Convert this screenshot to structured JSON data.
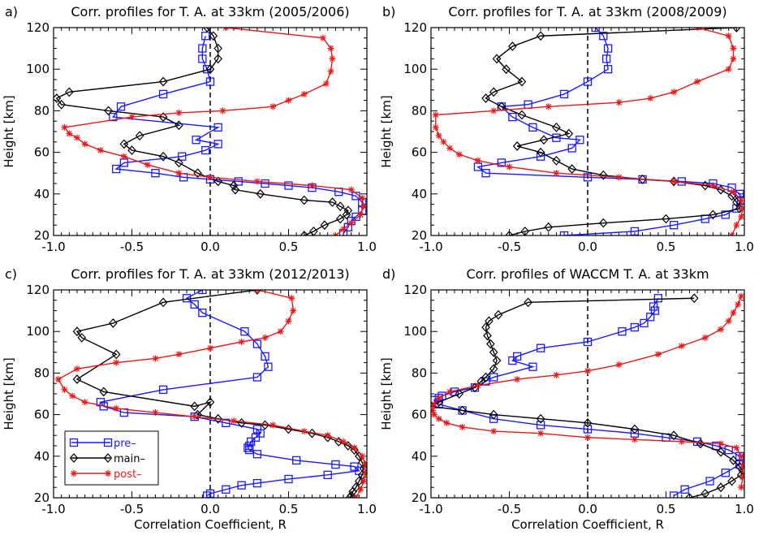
{
  "chart_data": [
    {
      "type": "line",
      "panel_label": "a)",
      "title": "Corr. profiles for T. A. at 33km (2005/2006)",
      "xlabel": "",
      "ylabel": "Height [km]",
      "xlim": [
        -1.0,
        1.0
      ],
      "ylim": [
        20,
        120
      ],
      "xticks": [
        "-1.0",
        "-0.5",
        "0.0",
        "0.5",
        "1.0"
      ],
      "yticks": [
        "20",
        "40",
        "60",
        "80",
        "100",
        "120"
      ],
      "zero_line": "dashed",
      "series": [
        {
          "key": "pre",
          "color": "#1a1aff",
          "marker": "square",
          "x": [
            -0.03,
            -0.05,
            -0.05,
            -0.02,
            0.0,
            -0.3,
            -0.57,
            -0.62,
            0.05,
            -0.09,
            0.05,
            -0.03,
            -0.18,
            -0.55,
            -0.6,
            -0.35,
            -0.17,
            0.0,
            0.18,
            0.35,
            0.5,
            0.65,
            0.82,
            0.93,
            0.97,
            0.97,
            0.93,
            0.9,
            0.88,
            0.85
          ],
          "y": [
            116,
            110,
            105,
            100,
            94,
            88,
            82,
            77,
            72,
            66,
            64,
            61,
            58,
            55,
            52,
            50,
            48,
            47,
            46,
            45,
            44,
            43,
            41,
            39,
            36,
            32,
            29,
            27,
            24,
            21
          ]
        },
        {
          "key": "main",
          "color": "#000000",
          "marker": "diamond",
          "x": [
            -0.02,
            0.02,
            0.05,
            0.05,
            0.0,
            -0.3,
            -0.9,
            -0.98,
            -0.95,
            -0.65,
            -0.3,
            -0.2,
            -0.45,
            -0.55,
            -0.5,
            -0.3,
            -0.2,
            -0.08,
            0.05,
            0.15,
            0.16,
            0.32,
            0.6,
            0.78,
            0.83,
            0.88,
            0.87,
            0.83,
            0.73,
            0.66,
            0.6
          ],
          "y": [
            120,
            116,
            110,
            105,
            100,
            94,
            89,
            86,
            83,
            80,
            77,
            73,
            68,
            64,
            61,
            58,
            55,
            50,
            46,
            44,
            42,
            40,
            37,
            36,
            34,
            32,
            30,
            28,
            25,
            22,
            20
          ]
        },
        {
          "key": "post",
          "color": "#e8191a",
          "marker": "star",
          "x": [
            0.1,
            0.72,
            0.77,
            0.78,
            0.77,
            0.74,
            0.6,
            0.5,
            0.4,
            0.08,
            -0.2,
            -0.5,
            -0.93,
            -0.9,
            -0.85,
            -0.8,
            -0.7,
            -0.55,
            -0.4,
            -0.2,
            0.0,
            0.3,
            0.65,
            0.9,
            0.97,
            0.98,
            0.96,
            0.9,
            0.85,
            0.8
          ],
          "y": [
            120,
            115,
            110,
            105,
            99,
            93,
            88,
            85,
            82,
            80,
            79,
            77,
            72,
            69,
            67,
            64,
            61,
            58,
            54,
            50,
            48,
            46,
            44,
            42,
            38,
            34,
            30,
            26,
            23,
            20
          ]
        }
      ]
    },
    {
      "type": "line",
      "panel_label": "b)",
      "title": "Corr. profiles for T. A. at 33km (2008/2009)",
      "xlabel": "",
      "ylabel": "Height [km]",
      "xlim": [
        -1.0,
        1.0
      ],
      "ylim": [
        20,
        120
      ],
      "xticks": [
        "-1.0",
        "-0.5",
        "0.0",
        "0.5",
        "1.0"
      ],
      "yticks": [
        "20",
        "40",
        "60",
        "80",
        "100",
        "120"
      ],
      "zero_line": "dashed",
      "series": [
        {
          "key": "pre",
          "color": "#1a1aff",
          "marker": "square",
          "x": [
            0.05,
            0.1,
            0.13,
            0.12,
            0.13,
            0.0,
            -0.15,
            -0.38,
            -0.55,
            -0.48,
            -0.35,
            -0.2,
            -0.05,
            -0.1,
            -0.3,
            -0.55,
            -0.7,
            -0.65,
            0.0,
            0.35,
            0.6,
            0.8,
            0.92,
            0.97,
            0.98,
            0.95,
            0.88,
            0.75,
            0.55,
            0.3,
            -0.15
          ],
          "y": [
            120,
            116,
            110,
            105,
            100,
            94,
            88,
            83,
            82,
            77,
            72,
            67,
            66,
            62,
            58,
            55,
            53,
            50,
            48,
            47,
            46,
            45,
            43,
            40,
            37,
            33,
            30,
            28,
            25,
            22,
            20
          ]
        },
        {
          "key": "main",
          "color": "#000000",
          "marker": "diamond",
          "x": [
            0.95,
            -0.3,
            -0.48,
            -0.58,
            -0.52,
            -0.42,
            -0.6,
            -0.65,
            -0.55,
            -0.42,
            -0.2,
            -0.12,
            -0.28,
            -0.45,
            -0.3,
            -0.2,
            -0.1,
            0.1,
            0.35,
            0.55,
            0.75,
            0.85,
            0.92,
            0.95,
            0.97,
            0.8,
            0.5,
            0.1,
            -0.25,
            -0.4,
            -0.5
          ],
          "y": [
            120,
            116,
            111,
            105,
            100,
            94,
            89,
            86,
            82,
            78,
            72,
            69,
            66,
            63,
            60,
            56,
            52,
            49,
            47,
            46,
            44,
            42,
            39,
            36,
            33,
            30,
            28,
            26,
            24,
            22,
            20
          ]
        },
        {
          "key": "post",
          "color": "#e8191a",
          "marker": "star",
          "x": [
            0.7,
            0.9,
            0.93,
            0.93,
            0.9,
            0.7,
            0.55,
            0.4,
            0.2,
            -0.25,
            -0.6,
            -0.97,
            -0.97,
            -0.95,
            -0.92,
            -0.88,
            -0.82,
            -0.7,
            -0.5,
            -0.2,
            0.2,
            0.55,
            0.8,
            0.93,
            0.98,
            0.99,
            0.98,
            0.95,
            0.92
          ],
          "y": [
            120,
            116,
            110,
            105,
            100,
            94,
            89,
            86,
            84,
            82,
            80,
            78,
            72,
            68,
            65,
            62,
            59,
            56,
            53,
            50,
            48,
            46,
            44,
            41,
            37,
            33,
            29,
            25,
            20
          ]
        }
      ]
    },
    {
      "type": "line",
      "panel_label": "c)",
      "title": "Corr. profiles for T. A. at 33km (2012/2013)",
      "xlabel": "Correlation Coefficient, R",
      "ylabel": "Height [km]",
      "xlim": [
        -1.0,
        1.0
      ],
      "ylim": [
        20,
        120
      ],
      "xticks": [
        "-1.0",
        "-0.5",
        "0.0",
        "0.5",
        "1.0"
      ],
      "yticks": [
        "20",
        "40",
        "60",
        "80",
        "100",
        "120"
      ],
      "zero_line": "dashed",
      "legend": {
        "position": "bottom-left",
        "entries": [
          "pre–",
          "main–",
          "post–"
        ]
      },
      "series": [
        {
          "key": "pre",
          "color": "#1a1aff",
          "marker": "square",
          "x": [
            -0.05,
            -0.15,
            -0.1,
            -0.05,
            0.22,
            0.3,
            0.35,
            0.37,
            0.3,
            -0.3,
            -0.7,
            -0.68,
            -0.55,
            -0.1,
            0.1,
            0.3,
            0.32,
            0.29,
            0.26,
            0.25,
            0.24,
            0.25,
            0.3,
            0.55,
            0.8,
            0.92,
            0.95,
            0.75,
            0.5,
            0.3,
            0.2,
            0.1,
            0.0,
            -0.02
          ],
          "y": [
            120,
            116,
            113,
            109,
            100,
            94,
            88,
            83,
            78,
            72,
            66,
            64,
            61,
            59,
            56,
            53,
            51,
            49,
            47,
            45,
            44,
            43,
            41,
            38,
            36,
            35,
            33,
            31,
            29,
            27,
            26,
            24,
            22,
            21
          ]
        },
        {
          "key": "main",
          "color": "#000000",
          "marker": "diamond",
          "x": [
            0.3,
            -0.3,
            -0.62,
            -0.85,
            -0.82,
            -0.6,
            -0.85,
            -0.68,
            -0.1,
            0.0,
            -0.08,
            0.05,
            0.2,
            0.35,
            0.5,
            0.65,
            0.75,
            0.82,
            0.88,
            0.92,
            0.95,
            0.97,
            0.98,
            0.97,
            0.95,
            0.93,
            0.91,
            0.9,
            0.89
          ],
          "y": [
            120,
            114,
            104,
            100,
            97,
            89,
            77,
            71,
            64,
            66,
            60,
            58,
            56,
            55,
            53,
            51,
            49,
            47,
            45,
            43,
            40,
            37,
            34,
            31,
            28,
            25,
            23,
            21,
            20
          ]
        },
        {
          "key": "post",
          "color": "#e8191a",
          "marker": "star",
          "x": [
            0.3,
            0.52,
            0.53,
            0.5,
            0.45,
            0.35,
            0.2,
            0.0,
            -0.2,
            -0.35,
            -0.6,
            -0.85,
            -0.97,
            -0.93,
            -0.88,
            -0.8,
            -0.6,
            -0.35,
            -0.1,
            0.15,
            0.4,
            0.6,
            0.75,
            0.85,
            0.92,
            0.97,
            0.99,
            0.99,
            0.98,
            0.96,
            0.93
          ],
          "y": [
            120,
            116,
            110,
            105,
            100,
            97,
            95,
            92,
            89,
            87,
            85,
            82,
            77,
            72,
            69,
            66,
            63,
            61,
            59,
            57,
            55,
            52,
            50,
            47,
            44,
            40,
            36,
            32,
            28,
            24,
            20
          ]
        }
      ]
    },
    {
      "type": "line",
      "panel_label": "d)",
      "title": "Corr. profiles of WACCM T. A. at 33km",
      "xlabel": "Correlation Coefficient, R",
      "ylabel": "Height [km]",
      "xlim": [
        -1.0,
        1.0
      ],
      "ylim": [
        20,
        120
      ],
      "xticks": [
        "-1.0",
        "-0.5",
        "0.0",
        "0.5",
        "1.0"
      ],
      "yticks": [
        "20",
        "40",
        "60",
        "80",
        "100",
        "120"
      ],
      "zero_line": "dashed",
      "series": [
        {
          "key": "pre",
          "color": "#1a1aff",
          "marker": "square",
          "x": [
            0.45,
            0.42,
            0.43,
            0.4,
            0.36,
            0.3,
            0.22,
            0.0,
            -0.3,
            -0.45,
            -0.48,
            -0.35,
            -0.6,
            -0.65,
            -0.72,
            -0.85,
            -0.93,
            -0.95,
            -0.98,
            -0.95,
            -0.8,
            -0.6,
            -0.3,
            0.0,
            0.3,
            0.5,
            0.7,
            0.82,
            0.9,
            0.97,
            0.97,
            0.88,
            0.78,
            0.62,
            0.55
          ],
          "y": [
            116,
            112,
            110,
            107,
            104,
            102,
            100,
            95,
            92,
            88,
            86,
            83,
            78,
            76,
            73,
            71,
            69,
            68,
            67,
            65,
            62,
            58,
            55,
            53,
            51,
            49,
            47,
            45,
            43,
            40,
            36,
            32,
            28,
            24,
            21
          ]
        },
        {
          "key": "main",
          "color": "#000000",
          "marker": "diamond",
          "x": [
            0.68,
            -0.38,
            -0.57,
            -0.63,
            -0.65,
            -0.64,
            -0.62,
            -0.6,
            -0.58,
            -0.6,
            -0.65,
            -0.68,
            -0.72,
            -0.82,
            -0.95,
            -1.0,
            -0.8,
            -0.6,
            -0.3,
            0.0,
            0.3,
            0.55,
            0.72,
            0.85,
            0.93,
            0.97,
            0.99,
            0.98,
            0.92,
            0.85,
            0.75,
            0.65
          ],
          "y": [
            116,
            114,
            108,
            105,
            102,
            98,
            94,
            90,
            86,
            82,
            78,
            76,
            73,
            70,
            66,
            64,
            62,
            60,
            58,
            56,
            53,
            50,
            46,
            42,
            38,
            35,
            33,
            31,
            28,
            25,
            22,
            20
          ]
        },
        {
          "key": "post",
          "color": "#e8191a",
          "marker": "star",
          "x": [
            0.98,
            0.96,
            0.93,
            0.9,
            0.85,
            0.75,
            0.6,
            0.45,
            0.2,
            0.0,
            -0.2,
            -0.45,
            -0.7,
            -0.88,
            -0.95,
            -0.98,
            -0.99,
            -0.98,
            -0.95,
            -0.9,
            -0.8,
            -0.6,
            -0.3,
            0.0,
            0.3,
            0.6,
            0.85,
            0.95,
            0.98,
            0.99,
            0.99,
            0.98
          ],
          "y": [
            117,
            113,
            109,
            105,
            101,
            97,
            93,
            89,
            84,
            81,
            79,
            77,
            74,
            71,
            68,
            65,
            62,
            60,
            58,
            56,
            54,
            52,
            51,
            49,
            48,
            47,
            46,
            44,
            40,
            35,
            30,
            25
          ]
        }
      ]
    }
  ]
}
